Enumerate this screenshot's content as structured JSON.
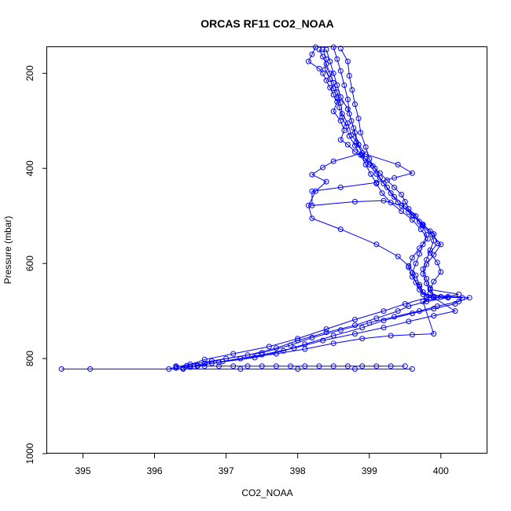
{
  "chart_data": {
    "type": "scatter",
    "title": "ORCAS RF11 CO2_NOAA",
    "xlabel": "CO2_NOAA",
    "ylabel": "Pressure (mbar)",
    "xlim": [
      394.5,
      400.65
    ],
    "ylim": [
      1000,
      145
    ],
    "x_ticks": [
      395,
      396,
      397,
      398,
      399,
      400
    ],
    "y_ticks": [
      200,
      400,
      600,
      800,
      1000
    ],
    "grid": false,
    "legend": "none",
    "series_color": "#0000ff",
    "marker": "open-circle",
    "connected": true,
    "series": [
      {
        "points": [
          [
            398.25,
            145
          ],
          [
            398.2,
            160
          ],
          [
            398.15,
            175
          ],
          [
            398.3,
            190
          ],
          [
            398.35,
            200
          ],
          [
            398.4,
            215
          ],
          [
            398.45,
            230
          ],
          [
            398.5,
            245
          ],
          [
            398.55,
            260
          ],
          [
            398.5,
            280
          ],
          [
            398.6,
            300
          ],
          [
            398.65,
            320
          ],
          [
            398.6,
            340
          ],
          [
            398.7,
            350
          ],
          [
            398.8,
            365
          ],
          [
            398.95,
            380
          ],
          [
            399.05,
            395
          ],
          [
            399.15,
            410
          ],
          [
            399.25,
            425
          ],
          [
            399.35,
            440
          ],
          [
            399.45,
            455
          ],
          [
            399.5,
            470
          ],
          [
            399.55,
            485
          ],
          [
            399.65,
            500
          ],
          [
            399.75,
            520
          ],
          [
            399.8,
            540
          ],
          [
            399.75,
            560
          ],
          [
            399.7,
            580
          ],
          [
            399.65,
            600
          ],
          [
            399.6,
            620
          ],
          [
            399.65,
            640
          ],
          [
            399.7,
            655
          ],
          [
            399.8,
            670
          ],
          [
            400.1,
            672
          ],
          [
            399.8,
            680
          ],
          [
            399.55,
            690
          ],
          [
            399.4,
            700
          ],
          [
            399.1,
            715
          ],
          [
            398.8,
            730
          ],
          [
            398.4,
            745
          ],
          [
            398.0,
            762
          ],
          [
            397.7,
            778
          ],
          [
            397.3,
            793
          ],
          [
            396.8,
            805
          ],
          [
            396.5,
            812
          ],
          [
            396.3,
            818
          ],
          [
            396.2,
            822
          ],
          [
            395.1,
            822
          ],
          [
            394.7,
            822
          ],
          [
            396.4,
            822
          ],
          [
            397.2,
            822
          ],
          [
            398.0,
            822
          ],
          [
            398.8,
            822
          ],
          [
            399.6,
            822
          ]
        ]
      },
      {
        "points": [
          [
            398.3,
            150
          ],
          [
            398.35,
            165
          ],
          [
            398.4,
            180
          ],
          [
            398.45,
            200
          ],
          [
            398.5,
            220
          ],
          [
            398.55,
            240
          ],
          [
            398.6,
            262
          ],
          [
            398.62,
            285
          ],
          [
            398.7,
            305
          ],
          [
            398.75,
            330
          ],
          [
            398.85,
            350
          ],
          [
            398.9,
            372
          ],
          [
            399.0,
            392
          ],
          [
            399.1,
            412
          ],
          [
            399.2,
            432
          ],
          [
            399.3,
            452
          ],
          [
            399.4,
            472
          ],
          [
            399.55,
            492
          ],
          [
            399.7,
            512
          ],
          [
            399.85,
            532
          ],
          [
            399.9,
            552
          ],
          [
            399.85,
            572
          ],
          [
            399.8,
            592
          ],
          [
            399.75,
            612
          ],
          [
            399.8,
            632
          ],
          [
            399.85,
            652
          ],
          [
            399.9,
            670
          ],
          [
            400.3,
            672
          ],
          [
            400.2,
            685
          ],
          [
            399.9,
            695
          ],
          [
            399.6,
            705
          ],
          [
            399.2,
            720
          ],
          [
            398.9,
            735
          ],
          [
            398.5,
            752
          ],
          [
            398.1,
            770
          ],
          [
            397.8,
            784
          ],
          [
            397.4,
            798
          ],
          [
            396.9,
            808
          ],
          [
            396.6,
            815
          ],
          [
            396.4,
            820
          ]
        ]
      },
      {
        "points": [
          [
            398.35,
            150
          ],
          [
            398.4,
            170
          ],
          [
            398.38,
            192
          ],
          [
            398.45,
            212
          ],
          [
            398.5,
            232
          ],
          [
            398.55,
            252
          ],
          [
            398.58,
            272
          ],
          [
            398.62,
            292
          ],
          [
            398.68,
            312
          ],
          [
            398.72,
            332
          ],
          [
            398.8,
            352
          ],
          [
            398.88,
            372
          ],
          [
            398.95,
            392
          ],
          [
            399.02,
            412
          ],
          [
            399.1,
            432
          ],
          [
            399.18,
            452
          ],
          [
            399.3,
            472
          ],
          [
            399.45,
            490
          ],
          [
            399.6,
            508
          ],
          [
            399.72,
            528
          ],
          [
            399.82,
            548
          ],
          [
            399.7,
            568
          ],
          [
            399.6,
            588
          ],
          [
            399.55,
            608
          ],
          [
            399.6,
            628
          ],
          [
            399.7,
            648
          ],
          [
            399.75,
            665
          ],
          [
            400.4,
            672
          ],
          [
            400.25,
            680
          ],
          [
            399.95,
            690
          ],
          [
            399.7,
            700
          ],
          [
            399.35,
            712
          ],
          [
            399.0,
            725
          ],
          [
            398.6,
            740
          ],
          [
            398.2,
            756
          ],
          [
            397.9,
            772
          ],
          [
            397.5,
            788
          ],
          [
            397.0,
            800
          ],
          [
            396.7,
            810
          ],
          [
            396.5,
            818
          ]
        ]
      },
      {
        "points": [
          [
            398.4,
            150
          ],
          [
            398.45,
            175
          ],
          [
            398.5,
            200
          ],
          [
            398.55,
            225
          ],
          [
            398.6,
            250
          ],
          [
            398.7,
            275
          ],
          [
            398.75,
            300
          ],
          [
            398.8,
            325
          ],
          [
            398.85,
            350
          ],
          [
            398.95,
            370
          ],
          [
            399.4,
            392
          ],
          [
            399.6,
            410
          ],
          [
            399.35,
            420
          ],
          [
            399.1,
            430
          ],
          [
            398.6,
            440
          ],
          [
            398.2,
            448
          ],
          [
            398.2,
            478
          ],
          [
            398.8,
            470
          ],
          [
            399.2,
            468
          ],
          [
            399.45,
            478
          ],
          [
            399.6,
            498
          ],
          [
            399.75,
            518
          ],
          [
            399.9,
            538
          ],
          [
            399.95,
            558
          ],
          [
            399.85,
            578
          ],
          [
            399.95,
            598
          ],
          [
            400.0,
            618
          ],
          [
            399.9,
            638
          ],
          [
            399.85,
            655
          ],
          [
            400.25,
            665
          ],
          [
            400.1,
            670
          ],
          [
            399.8,
            672
          ],
          [
            399.5,
            685
          ],
          [
            399.2,
            700
          ],
          [
            398.8,
            718
          ],
          [
            398.4,
            738
          ],
          [
            398.0,
            758
          ],
          [
            397.6,
            775
          ],
          [
            397.1,
            790
          ],
          [
            396.7,
            802
          ],
          [
            396.45,
            815
          ]
        ]
      },
      {
        "points": [
          [
            398.5,
            145
          ],
          [
            398.55,
            170
          ],
          [
            398.6,
            195
          ],
          [
            398.65,
            225
          ],
          [
            398.7,
            255
          ],
          [
            398.72,
            285
          ],
          [
            398.78,
            315
          ],
          [
            398.82,
            345
          ],
          [
            398.9,
            368
          ],
          [
            398.5,
            385
          ],
          [
            398.35,
            398
          ],
          [
            398.2,
            413
          ],
          [
            398.4,
            428
          ],
          [
            398.25,
            448
          ],
          [
            398.15,
            478
          ],
          [
            398.2,
            505
          ],
          [
            398.6,
            528
          ],
          [
            399.1,
            560
          ],
          [
            399.4,
            585
          ],
          [
            399.55,
            605
          ],
          [
            399.65,
            625
          ],
          [
            399.7,
            645
          ],
          [
            399.75,
            660
          ],
          [
            399.9,
            672
          ],
          [
            400.2,
            700
          ],
          [
            399.9,
            710
          ],
          [
            399.55,
            722
          ],
          [
            399.2,
            735
          ],
          [
            398.8,
            748
          ],
          [
            398.35,
            762
          ],
          [
            397.95,
            778
          ],
          [
            397.5,
            792
          ],
          [
            396.95,
            806
          ],
          [
            396.55,
            817
          ]
        ]
      },
      {
        "points": [
          [
            398.6,
            148
          ],
          [
            398.7,
            175
          ],
          [
            398.72,
            205
          ],
          [
            398.76,
            235
          ],
          [
            398.8,
            265
          ],
          [
            398.85,
            295
          ],
          [
            398.88,
            325
          ],
          [
            398.95,
            355
          ],
          [
            399.0,
            380
          ],
          [
            399.08,
            400
          ],
          [
            399.15,
            420
          ],
          [
            399.25,
            440
          ],
          [
            399.35,
            460
          ],
          [
            399.5,
            480
          ],
          [
            399.62,
            500
          ],
          [
            399.74,
            520
          ],
          [
            399.88,
            540
          ],
          [
            400.0,
            560
          ],
          [
            399.9,
            582
          ],
          [
            399.8,
            602
          ],
          [
            399.75,
            622
          ],
          [
            399.8,
            642
          ],
          [
            399.85,
            662
          ],
          [
            400.0,
            670
          ],
          [
            399.75,
            680
          ],
          [
            399.9,
            748
          ],
          [
            399.6,
            750
          ],
          [
            399.3,
            752
          ],
          [
            398.9,
            758
          ],
          [
            398.5,
            768
          ],
          [
            398.1,
            780
          ],
          [
            397.7,
            790
          ],
          [
            397.2,
            800
          ],
          [
            396.8,
            810
          ],
          [
            396.6,
            816
          ],
          [
            396.3,
            820
          ]
        ]
      },
      {
        "points": [
          [
            396.3,
            816
          ],
          [
            396.5,
            816
          ],
          [
            396.7,
            816
          ],
          [
            396.9,
            816
          ],
          [
            397.1,
            816
          ],
          [
            397.3,
            816
          ],
          [
            397.5,
            816
          ],
          [
            397.7,
            816
          ],
          [
            397.9,
            816
          ],
          [
            398.1,
            816
          ],
          [
            398.3,
            816
          ],
          [
            398.5,
            816
          ],
          [
            398.7,
            816
          ],
          [
            398.9,
            816
          ],
          [
            399.1,
            816
          ],
          [
            399.3,
            816
          ],
          [
            399.5,
            816
          ]
        ]
      }
    ]
  }
}
